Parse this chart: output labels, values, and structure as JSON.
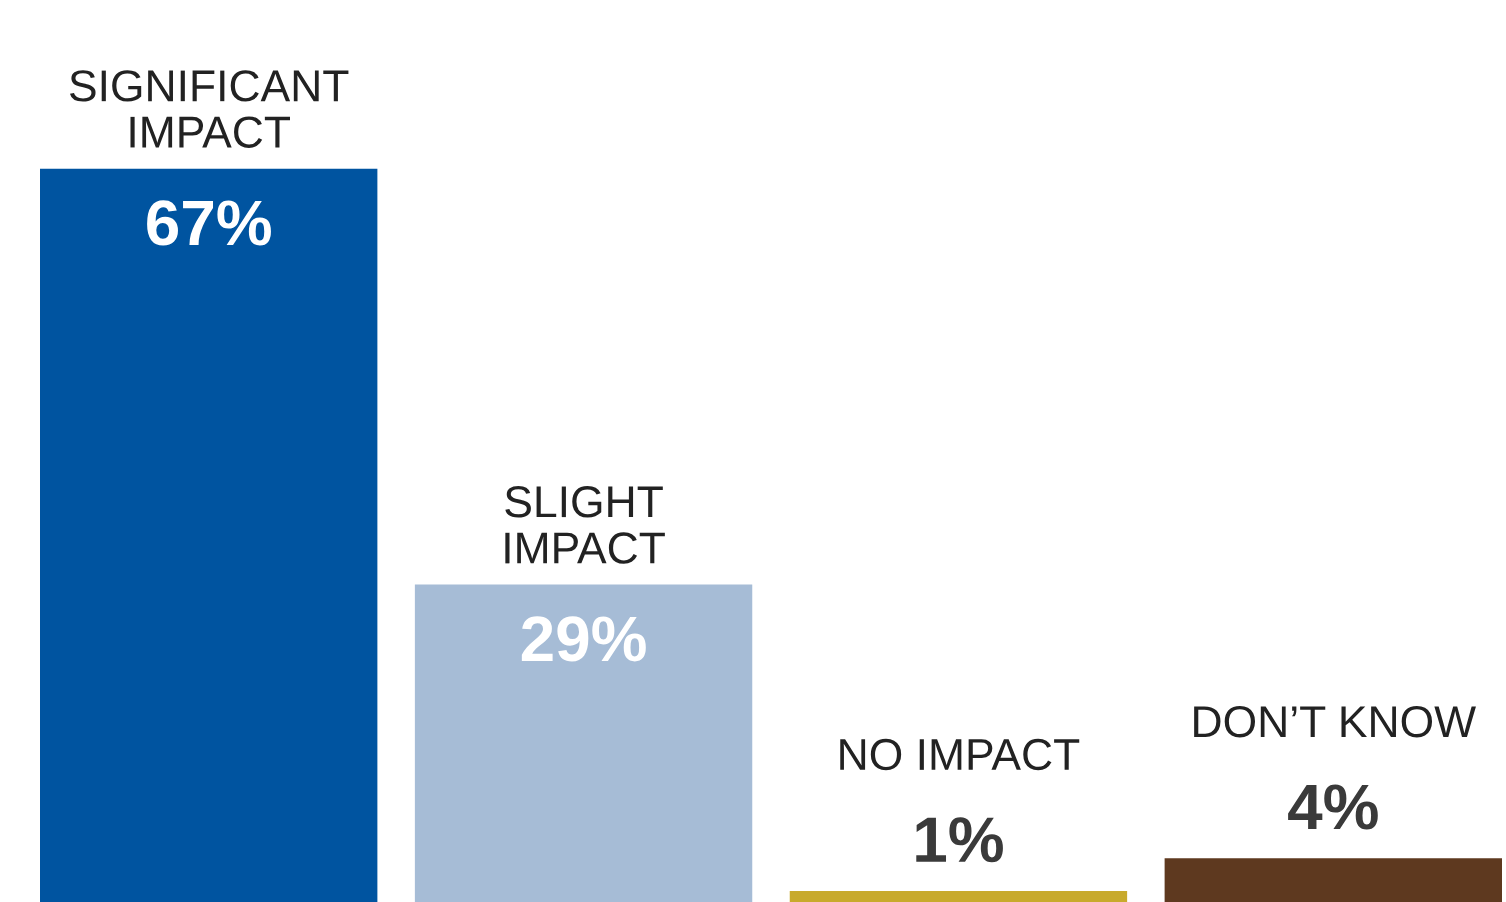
{
  "chart_data": {
    "type": "bar",
    "categories": [
      "SIGNIFICANT\nIMPACT",
      "SLIGHT\nIMPACT",
      "NO IMPACT",
      "DON’T KNOW"
    ],
    "values": [
      67,
      29,
      1,
      4
    ],
    "colors": [
      "#0054a0",
      "#a6bcd6",
      "#c8aa2c",
      "#5e391f"
    ],
    "value_labels": [
      "67%",
      "29%",
      "1%",
      "4%"
    ]
  }
}
